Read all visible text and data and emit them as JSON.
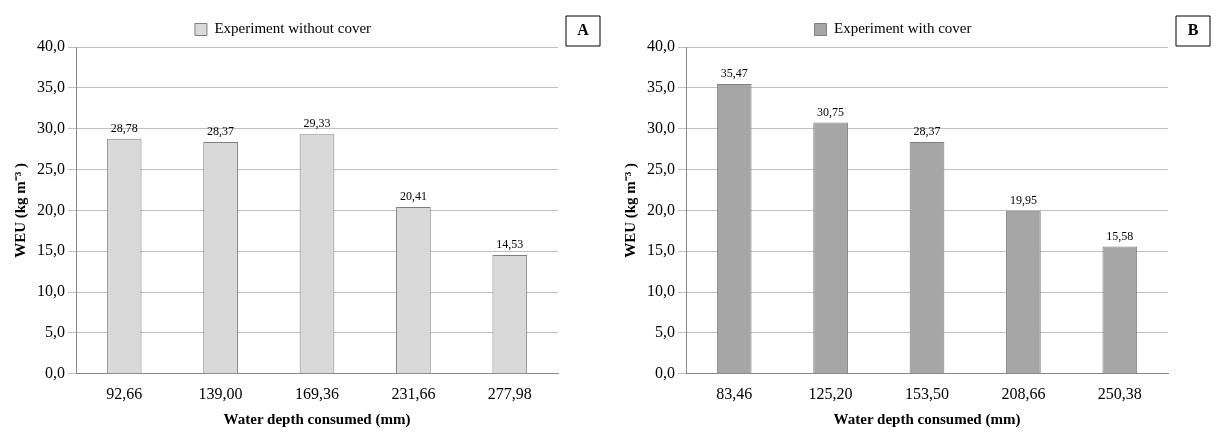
{
  "chart_data": [
    {
      "type": "bar",
      "categories": [
        "92,66",
        "139,00",
        "169,36",
        "231,66",
        "277,98"
      ],
      "xlabel": "Water depth consumed (mm)",
      "ylabel": "WEU (kg m⁻³ )",
      "annotations": [
        "A"
      ],
      "legend": "top",
      "series": [
        {
          "name": "Experiment without cover",
          "color": "#d9d9d9",
          "values": [
            28.78,
            28.37,
            29.33,
            20.41,
            14.53
          ],
          "value_labels": [
            "28,78",
            "28,37",
            "29,33",
            "20,41",
            "14,53"
          ]
        }
      ],
      "ylim": [
        0,
        40
      ],
      "yticks": [
        {
          "value": 0,
          "label": "0,0"
        },
        {
          "value": 5,
          "label": "5,0"
        },
        {
          "value": 10,
          "label": "10,0"
        },
        {
          "value": 15,
          "label": "15,0"
        },
        {
          "value": 20,
          "label": "20,0"
        },
        {
          "value": 25,
          "label": "25,0"
        },
        {
          "value": 30,
          "label": "30,0"
        },
        {
          "value": 35,
          "label": "35,0"
        },
        {
          "value": 40,
          "label": "40,0"
        }
      ],
      "grid": "y"
    },
    {
      "type": "bar",
      "categories": [
        "83,46",
        "125,20",
        "153,50",
        "208,66",
        "250,38"
      ],
      "xlabel": "Water depth consumed (mm)",
      "ylabel": "WEU (kg m⁻³ )",
      "annotations": [
        "B"
      ],
      "legend": "top",
      "series": [
        {
          "name": "Experiment with cover",
          "color": "#a6a6a6",
          "values": [
            35.47,
            30.75,
            28.37,
            19.95,
            15.58
          ],
          "value_labels": [
            "35,47",
            "30,75",
            "28,37",
            "19,95",
            "15,58"
          ]
        }
      ],
      "ylim": [
        0,
        40
      ],
      "yticks": [
        {
          "value": 0,
          "label": "0,0"
        },
        {
          "value": 5,
          "label": "5,0"
        },
        {
          "value": 10,
          "label": "10,0"
        },
        {
          "value": 15,
          "label": "15,0"
        },
        {
          "value": 20,
          "label": "20,0"
        },
        {
          "value": 25,
          "label": "25,0"
        },
        {
          "value": 30,
          "label": "30,0"
        },
        {
          "value": 35,
          "label": "35,0"
        },
        {
          "value": 40,
          "label": "40,0"
        }
      ],
      "grid": "y"
    }
  ]
}
